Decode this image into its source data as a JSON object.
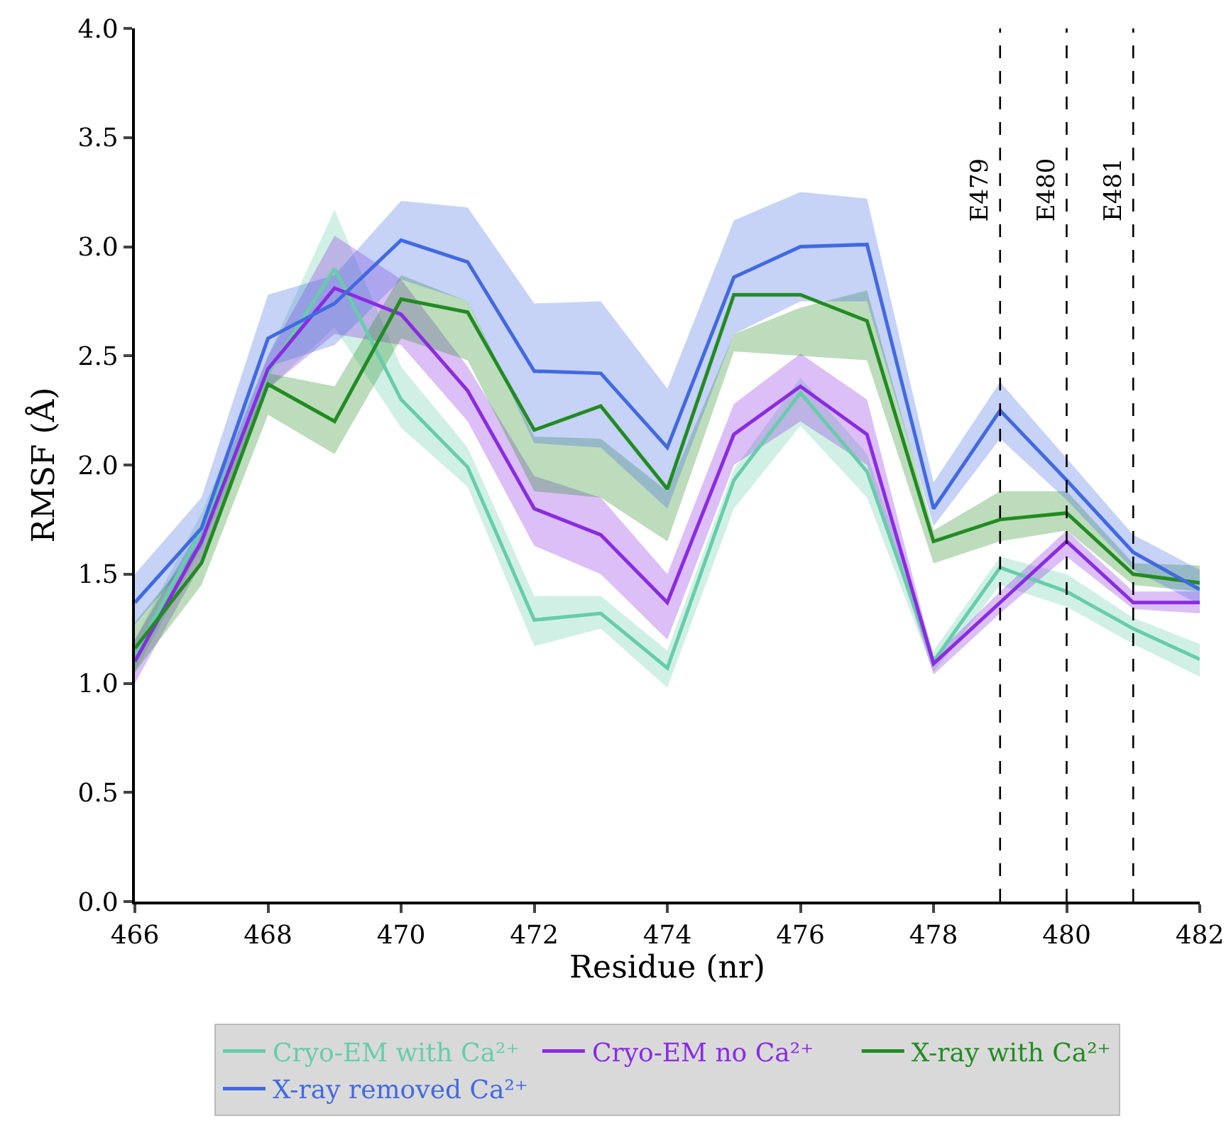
{
  "chart_data": {
    "type": "line",
    "xlabel": "Residue (nr)",
    "ylabel": "RMSF (Å)",
    "x": [
      466,
      467,
      468,
      469,
      470,
      471,
      472,
      473,
      474,
      475,
      476,
      477,
      478,
      479,
      480,
      481,
      482
    ],
    "series": [
      {
        "name": "Cryo-EM with Ca²⁺",
        "color": "#66cdaa",
        "values": [
          1.13,
          1.7,
          2.42,
          2.9,
          2.3,
          1.99,
          1.29,
          1.32,
          1.07,
          1.93,
          2.33,
          1.97,
          1.1,
          1.53,
          1.42,
          1.25,
          1.11
        ],
        "lower": [
          1.05,
          1.62,
          2.35,
          2.63,
          2.17,
          1.9,
          1.17,
          1.25,
          0.98,
          1.8,
          2.18,
          1.85,
          1.05,
          1.45,
          1.35,
          1.18,
          1.03
        ],
        "upper": [
          1.2,
          1.78,
          2.5,
          3.17,
          2.45,
          2.08,
          1.4,
          1.4,
          1.15,
          1.98,
          2.4,
          2.05,
          1.15,
          1.58,
          1.5,
          1.3,
          1.18
        ]
      },
      {
        "name": "Cryo-EM no Ca²⁺",
        "color": "#8a2be2",
        "values": [
          1.1,
          1.65,
          2.44,
          2.81,
          2.69,
          2.34,
          1.8,
          1.68,
          1.37,
          2.14,
          2.36,
          2.14,
          1.09,
          1.37,
          1.65,
          1.37,
          1.37
        ],
        "lower": [
          1.0,
          1.55,
          2.35,
          2.6,
          2.55,
          2.2,
          1.63,
          1.5,
          1.2,
          2.0,
          2.2,
          2.0,
          1.04,
          1.32,
          1.58,
          1.34,
          1.32
        ],
        "upper": [
          1.2,
          1.72,
          2.5,
          3.05,
          2.85,
          2.45,
          1.95,
          1.85,
          1.5,
          2.28,
          2.51,
          2.3,
          1.12,
          1.42,
          1.7,
          1.42,
          1.42
        ]
      },
      {
        "name": "X-ray with Ca²⁺",
        "color": "#228b22",
        "values": [
          1.16,
          1.55,
          2.37,
          2.2,
          2.76,
          2.7,
          2.16,
          2.27,
          1.89,
          2.78,
          2.78,
          2.66,
          1.65,
          1.75,
          1.78,
          1.5,
          1.46
        ],
        "lower": [
          1.05,
          1.45,
          2.23,
          2.05,
          2.58,
          2.48,
          1.88,
          1.85,
          1.65,
          2.52,
          2.5,
          2.48,
          1.55,
          1.65,
          1.7,
          1.45,
          1.42
        ],
        "upper": [
          1.28,
          1.65,
          2.42,
          2.36,
          2.87,
          2.75,
          2.13,
          2.12,
          1.88,
          2.6,
          2.72,
          2.8,
          1.7,
          1.88,
          1.88,
          1.55,
          1.54
        ]
      },
      {
        "name": "X-ray removed Ca²⁺",
        "color": "#4169e1",
        "values": [
          1.37,
          1.71,
          2.58,
          2.74,
          3.03,
          2.93,
          2.43,
          2.42,
          2.08,
          2.86,
          3.0,
          3.01,
          1.8,
          2.25,
          1.93,
          1.6,
          1.43
        ],
        "lower": [
          1.27,
          1.62,
          2.45,
          2.55,
          2.85,
          2.75,
          2.1,
          2.08,
          1.8,
          2.6,
          2.75,
          2.75,
          1.72,
          2.12,
          1.84,
          1.52,
          1.36
        ],
        "upper": [
          1.5,
          1.85,
          2.78,
          2.87,
          3.21,
          3.18,
          2.74,
          2.75,
          2.35,
          3.12,
          3.25,
          3.22,
          1.92,
          2.38,
          2.03,
          1.68,
          1.52
        ]
      }
    ],
    "xlim": [
      466,
      482
    ],
    "xticks": [
      466,
      468,
      470,
      472,
      474,
      476,
      478,
      480,
      482
    ],
    "ylim": [
      0,
      4
    ],
    "yticks": [
      {
        "value": 0,
        "label": "0.0"
      },
      {
        "value": 0.5,
        "label": "0.5"
      },
      {
        "value": 1,
        "label": "1.0"
      },
      {
        "value": 1.5,
        "label": "1.5"
      },
      {
        "value": 2,
        "label": "2.0"
      },
      {
        "value": 2.5,
        "label": "2.5"
      },
      {
        "value": 3,
        "label": "3.0"
      },
      {
        "value": 3.5,
        "label": "3.5"
      },
      {
        "value": 4,
        "label": "4.0"
      }
    ],
    "ref_lines": [
      {
        "axis": "x",
        "value": 479,
        "label": "E479",
        "color": "#000000",
        "line_style": "dashed"
      },
      {
        "axis": "x",
        "value": 480,
        "label": "E480",
        "color": "#000000",
        "line_style": "dashed"
      },
      {
        "axis": "x",
        "value": 481,
        "label": "E481",
        "color": "#000000",
        "line_style": "dashed"
      }
    ],
    "grid": false,
    "legend": "bottom",
    "marker": "none",
    "line_style": "solid"
  }
}
